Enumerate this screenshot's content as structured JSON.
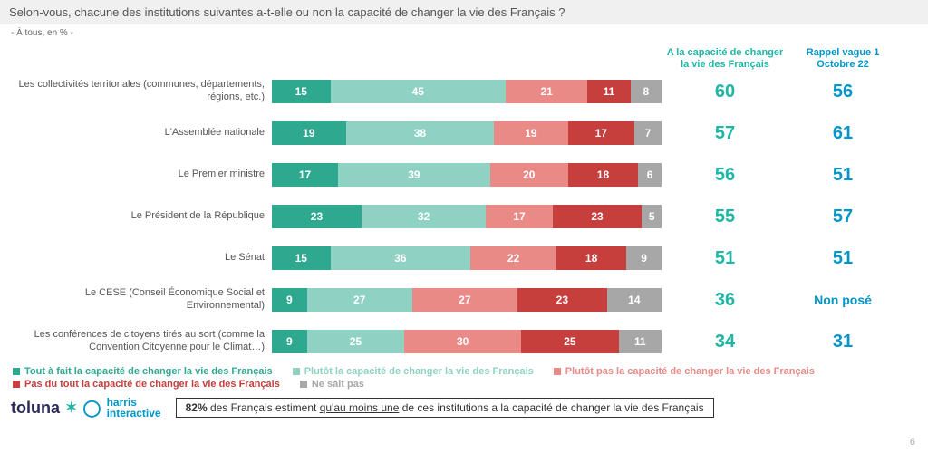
{
  "title": "Selon-vous, chacune des institutions suivantes a-t-elle ou non la capacité de changer la vie des Français ?",
  "subtitle": "- À tous, en % -",
  "header_total": "A la capacité de changer la vie des Français",
  "header_recall": "Rappel vague 1 Octobre 22",
  "colors": {
    "c1": "#2ea98f",
    "c2": "#8fd2c3",
    "c3": "#e98a87",
    "c4": "#c73f3d",
    "c5": "#a7a7a7",
    "total": "#1fb6a6",
    "recall": "#0095c8"
  },
  "rows": [
    {
      "label": "Les collectivités territoriales (communes, départements, régions, etc.)",
      "v": [
        15,
        45,
        21,
        11,
        8
      ],
      "total": "60",
      "recall": "56"
    },
    {
      "label": "L'Assemblée nationale",
      "v": [
        19,
        38,
        19,
        17,
        7
      ],
      "total": "57",
      "recall": "61"
    },
    {
      "label": "Le Premier ministre",
      "v": [
        17,
        39,
        20,
        18,
        6
      ],
      "total": "56",
      "recall": "51"
    },
    {
      "label": "Le Président de la République",
      "v": [
        23,
        32,
        17,
        23,
        5
      ],
      "total": "55",
      "recall": "57"
    },
    {
      "label": "Le Sénat",
      "v": [
        15,
        36,
        22,
        18,
        9
      ],
      "total": "51",
      "recall": "51"
    },
    {
      "label": "Le CESE (Conseil Économique Social et Environnemental)",
      "v": [
        9,
        27,
        27,
        23,
        14
      ],
      "total": "36",
      "recall": "Non posé"
    },
    {
      "label": "Les conférences de citoyens tirés au sort (comme la Convention Citoyenne pour le Climat…)",
      "v": [
        9,
        25,
        30,
        25,
        11
      ],
      "total": "34",
      "recall": "31"
    }
  ],
  "legend": [
    "Tout à fait la capacité de changer la vie des Français",
    "Plutôt la capacité de changer la vie des Français",
    "Plutôt pas la capacité de changer la vie des Français",
    "Pas du tout la capacité de changer la vie des Français",
    "Ne sait pas"
  ],
  "summary_pct": "82%",
  "summary_mid": " des Français estiment ",
  "summary_und": "qu'au moins une",
  "summary_end": " de ces institutions a la capacité de changer la vie des Français",
  "logo1": "toluna",
  "logo2a": "harris",
  "logo2b": "interactive",
  "page": "6"
}
